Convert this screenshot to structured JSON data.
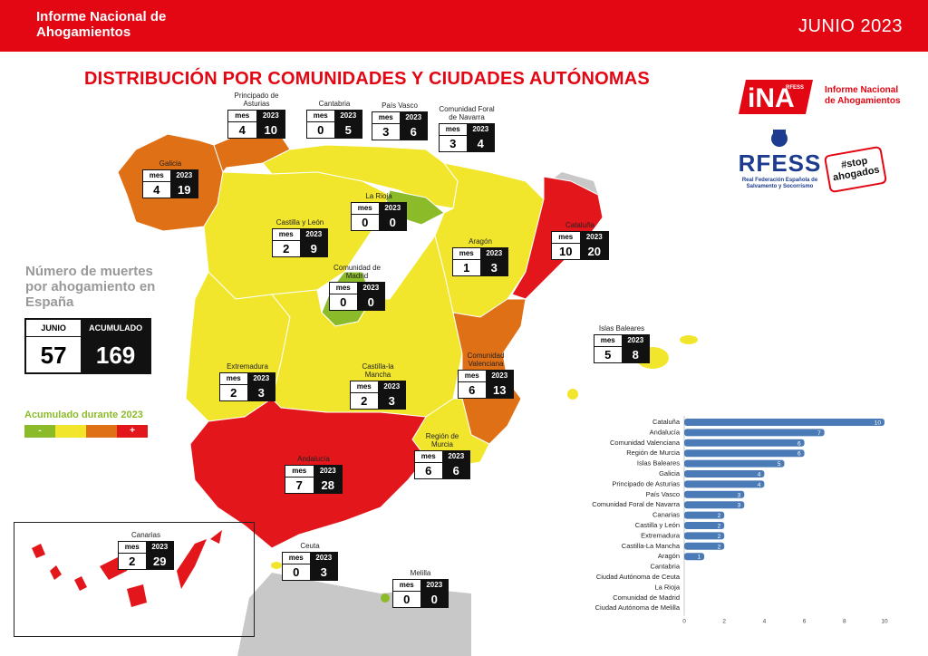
{
  "header": {
    "title": "Informe Nacional de Ahogamientos",
    "date": "JUNIO 2023"
  },
  "main_title": "DISTRIBUCIÓN POR COMUNIDADES Y CIUDADES AUTÓNOMAS",
  "colors": {
    "brand_red": "#e30613",
    "level_green": "#8cbb2a",
    "level_yellow": "#f2e62d",
    "level_orange": "#e07016",
    "level_red": "#e3161b",
    "bar_blue": "#4a7bb7",
    "neighbor_grey": "#c8c8c8"
  },
  "summary": {
    "title": "Número de muertes por ahogamiento en España",
    "col1_label": "JUNIO",
    "col2_label": "ACUMULADO 2023",
    "month_value": "57",
    "accum_value": "169"
  },
  "legend": {
    "title": "Acumulado durante 2023",
    "minus": "-",
    "plus": "+"
  },
  "table_headers": {
    "col1": "mes",
    "col2": "2023"
  },
  "regions": [
    {
      "name": "Principado de Asturias",
      "mes": "4",
      "y2023": "10",
      "level": "orange"
    },
    {
      "name": "Cantabria",
      "mes": "0",
      "y2023": "5",
      "level": "yellow"
    },
    {
      "name": "País Vasco",
      "mes": "3",
      "y2023": "6",
      "level": "yellow"
    },
    {
      "name": "Comunidad Foral de Navarra",
      "mes": "3",
      "y2023": "4",
      "level": "yellow"
    },
    {
      "name": "Galicia",
      "mes": "4",
      "y2023": "19",
      "level": "orange"
    },
    {
      "name": "La Rioja",
      "mes": "0",
      "y2023": "0",
      "level": "green"
    },
    {
      "name": "Castilla y León",
      "mes": "2",
      "y2023": "9",
      "level": "yellow"
    },
    {
      "name": "Aragón",
      "mes": "1",
      "y2023": "3",
      "level": "yellow"
    },
    {
      "name": "Cataluña",
      "mes": "10",
      "y2023": "20",
      "level": "red"
    },
    {
      "name": "Comunidad de Madrid",
      "mes": "0",
      "y2023": "0",
      "level": "green"
    },
    {
      "name": "Islas Baleares",
      "mes": "5",
      "y2023": "8",
      "level": "yellow"
    },
    {
      "name": "Extremadura",
      "mes": "2",
      "y2023": "3",
      "level": "yellow"
    },
    {
      "name": "Castilla-la Mancha",
      "mes": "2",
      "y2023": "3",
      "level": "yellow"
    },
    {
      "name": "Comunidad Valenciana",
      "mes": "6",
      "y2023": "13",
      "level": "orange"
    },
    {
      "name": "Región de Murcia",
      "mes": "6",
      "y2023": "6",
      "level": "yellow"
    },
    {
      "name": "Andalucía",
      "mes": "7",
      "y2023": "28",
      "level": "red"
    },
    {
      "name": "Canarias",
      "mes": "2",
      "y2023": "29",
      "level": "red"
    },
    {
      "name": "Ceuta",
      "mes": "0",
      "y2023": "3",
      "level": "yellow"
    },
    {
      "name": "Melilla",
      "mes": "0",
      "y2023": "0",
      "level": "green"
    }
  ],
  "logos": {
    "ina_mark": "iNA",
    "ina_small": "RFESS",
    "ina_name": "Informe Nacional de Ahogamientos",
    "rfess_name": "RFESS",
    "rfess_sub": "Real Federación Española de Salvamento y Socorrismo",
    "stop_tag": "#stop",
    "stop_word": "ahogados"
  },
  "chart_data": {
    "type": "bar",
    "orientation": "horizontal",
    "categories": [
      "Cataluña",
      "Andalucía",
      "Comunidad Valenciana",
      "Región de Murcia",
      "Islas Baleares",
      "Galicia",
      "Principado de Asturias",
      "País Vasco",
      "Comunidad Foral de Navarra",
      "Canarias",
      "Castilla y León",
      "Extremadura",
      "Castilla-La Mancha",
      "Aragón",
      "Cantabria",
      "Ciudad Autónoma de Ceuta",
      "La Rioja",
      "Comunidad de Madrid",
      "Ciudad Autónoma de Melilla"
    ],
    "values": [
      10,
      7,
      6,
      6,
      5,
      4,
      4,
      3,
      3,
      2,
      2,
      2,
      2,
      1,
      0,
      0,
      0,
      0,
      0
    ],
    "xlim": [
      0,
      10
    ],
    "xticks": [
      0,
      2,
      4,
      6,
      8,
      10
    ],
    "title": "",
    "xlabel": "",
    "ylabel": ""
  }
}
